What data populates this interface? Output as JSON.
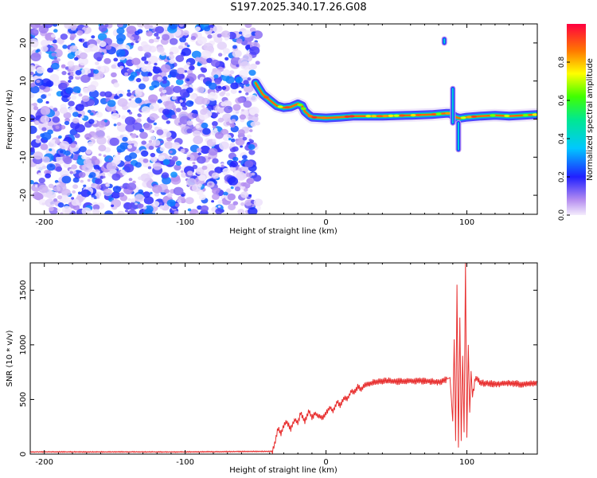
{
  "title": "S197.2025.340.17.26.G08",
  "colors": {
    "snr_line": "#e83030",
    "frame": "#000000"
  },
  "chart_data": [
    {
      "type": "heatmap",
      "title": "S197.2025.340.17.26.G08",
      "xlabel": "Height of straight line (km)",
      "ylabel": "Frequency (Hz)",
      "xlim": [
        -210,
        150
      ],
      "ylim": [
        -25,
        25
      ],
      "xticks": [
        -200,
        -100,
        0,
        100
      ],
      "yticks": [
        -20,
        -10,
        0,
        10,
        20
      ],
      "noise_region_x": [
        -210,
        -48
      ],
      "ridge": [
        [
          -50,
          9.5
        ],
        [
          -45,
          6.5
        ],
        [
          -40,
          5
        ],
        [
          -35,
          3.5
        ],
        [
          -30,
          3
        ],
        [
          -25,
          3.2
        ],
        [
          -20,
          4
        ],
        [
          -17,
          3.5
        ],
        [
          -15,
          2
        ],
        [
          -12,
          1
        ],
        [
          -10,
          0.5
        ],
        [
          0,
          0.3
        ],
        [
          10,
          0.5
        ],
        [
          20,
          0.8
        ],
        [
          40,
          0.8
        ],
        [
          60,
          1
        ],
        [
          75,
          1.2
        ],
        [
          85,
          1.5
        ],
        [
          88,
          1.5
        ],
        [
          92,
          0.5
        ],
        [
          95,
          0.2
        ],
        [
          100,
          0.5
        ],
        [
          110,
          0.8
        ],
        [
          120,
          1
        ],
        [
          130,
          0.8
        ],
        [
          140,
          1
        ],
        [
          150,
          1.2
        ]
      ],
      "spikes": [
        {
          "x": 90,
          "y_from": -1,
          "y_to": 8
        },
        {
          "x": 94,
          "y_from": -8,
          "y_to": -1
        },
        {
          "x": 84,
          "y_from": 20,
          "y_to": 21
        }
      ],
      "colorbar": {
        "label": "Normalized spectral amplitude",
        "range": [
          0,
          1
        ],
        "ticks": [
          0,
          0.2,
          0.4,
          0.6,
          0.8
        ]
      }
    },
    {
      "type": "line",
      "xlabel": "Height of straight line (km)",
      "ylabel": "SNR (10 * v/v)",
      "xlim": [
        -210,
        150
      ],
      "ylim": [
        0,
        1750
      ],
      "xticks": [
        -200,
        -100,
        0,
        100
      ],
      "yticks": [
        0,
        500,
        1000,
        1500
      ],
      "series": [
        {
          "name": "SNR",
          "x": [
            -210,
            -100,
            -38,
            -36,
            -34,
            -32,
            -30,
            -28,
            -25,
            -22,
            -20,
            -18,
            -15,
            -12,
            -10,
            -8,
            -5,
            -2,
            0,
            3,
            5,
            8,
            10,
            13,
            15,
            18,
            20,
            23,
            25,
            28,
            30,
            35,
            40,
            50,
            60,
            70,
            80,
            85,
            88,
            90,
            91,
            92,
            93,
            94,
            95,
            96,
            97,
            98,
            99,
            100,
            101,
            102,
            103,
            104,
            106,
            110,
            120,
            130,
            140,
            150
          ],
          "y": [
            20,
            20,
            25,
            120,
            240,
            180,
            260,
            300,
            230,
            320,
            280,
            380,
            300,
            400,
            330,
            370,
            350,
            330,
            380,
            430,
            390,
            480,
            440,
            520,
            500,
            580,
            560,
            620,
            590,
            640,
            640,
            660,
            670,
            665,
            670,
            670,
            660,
            680,
            700,
            300,
            1050,
            120,
            1550,
            60,
            1250,
            120,
            900,
            200,
            1750,
            150,
            1000,
            380,
            760,
            520,
            700,
            650,
            640,
            650,
            640,
            650
          ]
        }
      ]
    }
  ]
}
